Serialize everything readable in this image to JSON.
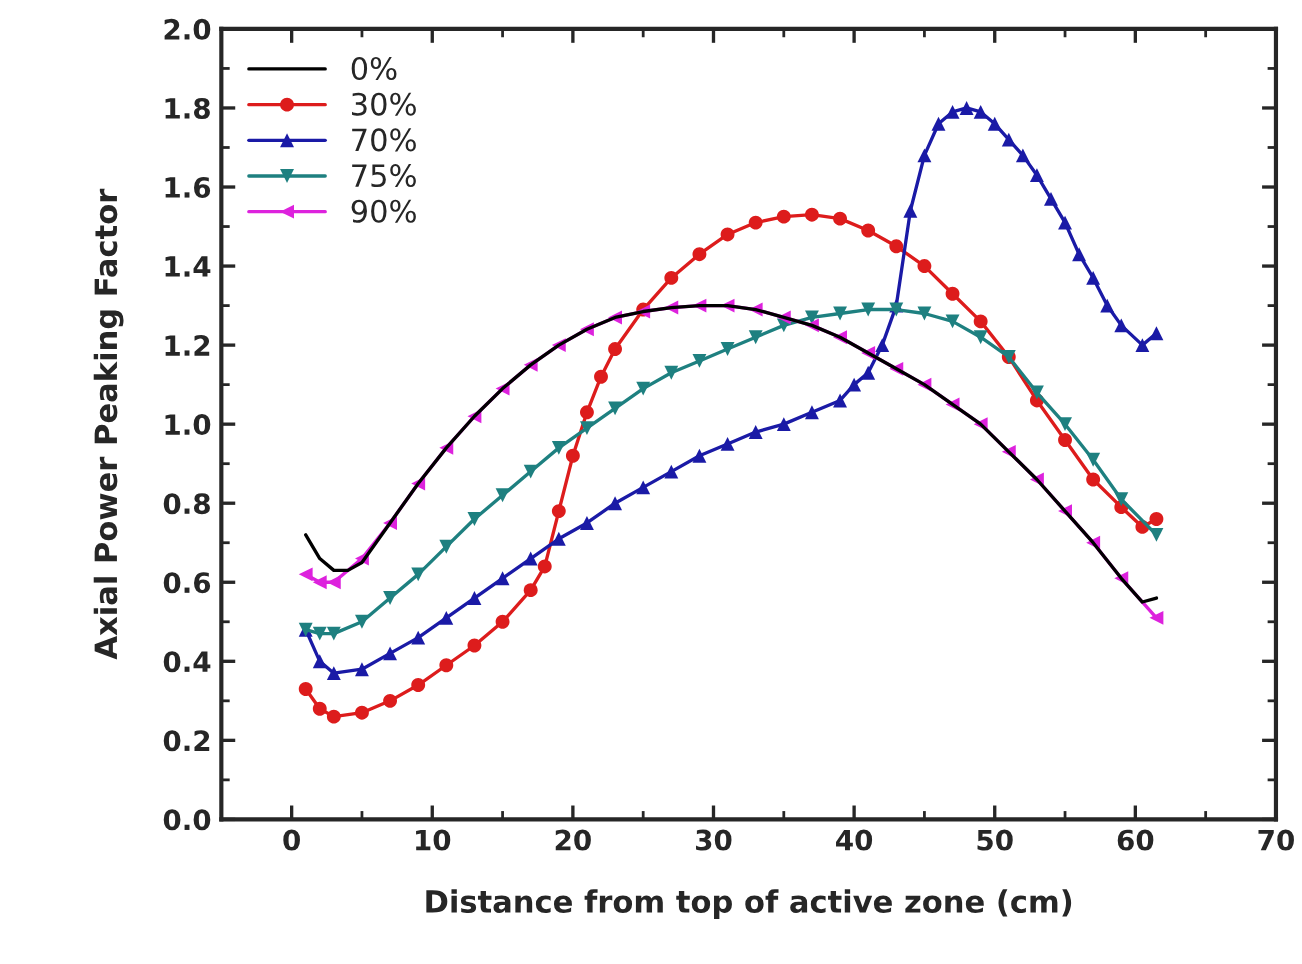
{
  "chart_data": {
    "type": "line",
    "xlabel": "Distance from top of active zone (cm)",
    "ylabel": "Axial Power Peaking Factor",
    "xlim": [
      -5,
      70
    ],
    "xticks": [
      0,
      10,
      20,
      30,
      40,
      50,
      60,
      70
    ],
    "ylim": [
      0.0,
      2.0
    ],
    "yticks": [
      {
        "value": 0.0,
        "label": "0.0"
      },
      {
        "value": 0.2,
        "label": "0.2"
      },
      {
        "value": 0.4,
        "label": "0.4"
      },
      {
        "value": 0.6,
        "label": "0.6"
      },
      {
        "value": 0.8,
        "label": "0.8"
      },
      {
        "value": 1.0,
        "label": "1.0"
      },
      {
        "value": 1.2,
        "label": "1.2"
      },
      {
        "value": 1.4,
        "label": "1.4"
      },
      {
        "value": 1.6,
        "label": "1.6"
      },
      {
        "value": 1.8,
        "label": "1.8"
      },
      {
        "value": 2.0,
        "label": "2.0"
      }
    ],
    "grid": false,
    "legend": "top left",
    "series": [
      {
        "name": "0%",
        "color": "#000000",
        "marker": "none",
        "x": [
          1,
          2,
          3,
          4,
          5,
          7,
          9,
          11,
          13,
          15,
          17,
          19,
          21,
          23,
          25,
          27,
          29,
          31,
          33,
          35,
          37,
          39,
          41,
          43,
          45,
          47,
          49,
          51,
          53,
          55,
          57,
          59,
          60.5,
          61.5
        ],
        "values": [
          0.72,
          0.66,
          0.63,
          0.63,
          0.65,
          0.75,
          0.85,
          0.94,
          1.02,
          1.09,
          1.15,
          1.2,
          1.24,
          1.27,
          1.285,
          1.295,
          1.3,
          1.3,
          1.29,
          1.27,
          1.25,
          1.22,
          1.18,
          1.14,
          1.1,
          1.05,
          1.0,
          0.93,
          0.86,
          0.78,
          0.7,
          0.61,
          0.55,
          0.56
        ]
      },
      {
        "name": "30%",
        "color": "#dd1c1c",
        "marker": "circle",
        "x": [
          1,
          2,
          3,
          5,
          7,
          9,
          11,
          13,
          15,
          17,
          18,
          19,
          20,
          21,
          22,
          23,
          25,
          27,
          29,
          31,
          33,
          35,
          37,
          39,
          41,
          43,
          45,
          47,
          49,
          51,
          53,
          55,
          57,
          59,
          60.5,
          61.5
        ],
        "values": [
          0.33,
          0.28,
          0.26,
          0.27,
          0.3,
          0.34,
          0.39,
          0.44,
          0.5,
          0.58,
          0.64,
          0.78,
          0.92,
          1.03,
          1.12,
          1.19,
          1.29,
          1.37,
          1.43,
          1.48,
          1.51,
          1.525,
          1.53,
          1.52,
          1.49,
          1.45,
          1.4,
          1.33,
          1.26,
          1.17,
          1.06,
          0.96,
          0.86,
          0.79,
          0.74,
          0.76
        ]
      },
      {
        "name": "70%",
        "color": "#1a1aa6",
        "marker": "triangle",
        "x": [
          1,
          2,
          3,
          5,
          7,
          9,
          11,
          13,
          15,
          17,
          19,
          21,
          23,
          25,
          27,
          29,
          31,
          33,
          35,
          37,
          39,
          40,
          41,
          42,
          43,
          44,
          45,
          46,
          47,
          48,
          49,
          50,
          51,
          52,
          53,
          54,
          55,
          56,
          57,
          58,
          59,
          60.5,
          61.5
        ],
        "values": [
          0.48,
          0.4,
          0.37,
          0.38,
          0.42,
          0.46,
          0.51,
          0.56,
          0.61,
          0.66,
          0.71,
          0.75,
          0.8,
          0.84,
          0.88,
          0.92,
          0.95,
          0.98,
          1.0,
          1.03,
          1.06,
          1.1,
          1.13,
          1.2,
          1.3,
          1.54,
          1.68,
          1.76,
          1.79,
          1.8,
          1.79,
          1.76,
          1.72,
          1.68,
          1.63,
          1.57,
          1.51,
          1.43,
          1.37,
          1.3,
          1.25,
          1.2,
          1.23
        ]
      },
      {
        "name": "75%",
        "color": "#1e8080",
        "marker": "triangle-down",
        "x": [
          1,
          2,
          3,
          5,
          7,
          9,
          11,
          13,
          15,
          17,
          19,
          21,
          23,
          25,
          27,
          29,
          31,
          33,
          35,
          37,
          39,
          41,
          43,
          45,
          47,
          49,
          51,
          53,
          55,
          57,
          59,
          61.5
        ],
        "values": [
          0.48,
          0.47,
          0.47,
          0.5,
          0.56,
          0.62,
          0.69,
          0.76,
          0.82,
          0.88,
          0.94,
          0.99,
          1.04,
          1.09,
          1.13,
          1.16,
          1.19,
          1.22,
          1.25,
          1.27,
          1.28,
          1.29,
          1.29,
          1.28,
          1.26,
          1.22,
          1.17,
          1.08,
          1.0,
          0.91,
          0.81,
          0.72
        ]
      },
      {
        "name": "90%",
        "color": "#dd22dd",
        "marker": "triangle-left",
        "x": [
          1,
          2,
          3,
          5,
          7,
          9,
          11,
          13,
          15,
          17,
          19,
          21,
          23,
          25,
          27,
          29,
          31,
          33,
          35,
          37,
          39,
          41,
          43,
          45,
          47,
          49,
          51,
          53,
          55,
          57,
          59,
          61.5
        ],
        "values": [
          0.62,
          0.6,
          0.6,
          0.66,
          0.75,
          0.85,
          0.94,
          1.02,
          1.09,
          1.15,
          1.2,
          1.24,
          1.27,
          1.285,
          1.295,
          1.3,
          1.3,
          1.29,
          1.27,
          1.25,
          1.22,
          1.18,
          1.14,
          1.1,
          1.05,
          1.0,
          0.93,
          0.86,
          0.78,
          0.7,
          0.61,
          0.51
        ]
      }
    ]
  }
}
